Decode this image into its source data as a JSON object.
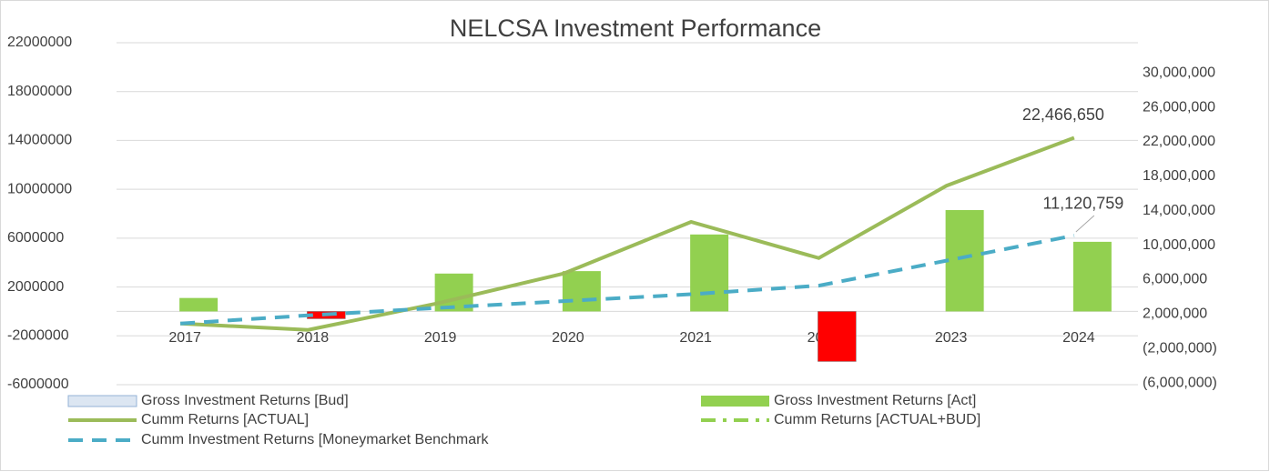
{
  "chart_data": {
    "type": "bar_line",
    "title": "NELCSA Investment Performance",
    "categories": [
      "2017",
      "2018",
      "2019",
      "2020",
      "2021",
      "2022",
      "2023",
      "2024"
    ],
    "ylim": [
      -6000000,
      22000000
    ],
    "yticks": [
      -6000000,
      -2000000,
      2000000,
      6000000,
      10000000,
      14000000,
      18000000,
      22000000
    ],
    "y2lim": [
      -6200000,
      33500000
    ],
    "y2ticks": [
      {
        "value": -6000000,
        "label": "(6,000,000)"
      },
      {
        "value": -2000000,
        "label": "(2,000,000)"
      },
      {
        "value": 2000000,
        "label": "2,000,000"
      },
      {
        "value": 6000000,
        "label": "6,000,000"
      },
      {
        "value": 10000000,
        "label": "10,000,000"
      },
      {
        "value": 14000000,
        "label": "14,000,000"
      },
      {
        "value": 18000000,
        "label": "18,000,000"
      },
      {
        "value": 22000000,
        "label": "22,000,000"
      },
      {
        "value": 26000000,
        "label": "26,000,000"
      },
      {
        "value": 30000000,
        "label": "30,000,000"
      }
    ],
    "grid": true,
    "legend": "bottom",
    "series": [
      {
        "name": "Gross Investment Returns [Bud]",
        "kind": "bar",
        "color": "#dce6f2",
        "values": [
          null,
          null,
          null,
          null,
          null,
          null,
          null,
          null
        ]
      },
      {
        "name": "Gross Investment Returns [Act]",
        "kind": "bar",
        "color": "#92d050",
        "negative_color": "#ff0000",
        "values": [
          1100000,
          -600000,
          3100000,
          3300000,
          6300000,
          -4100000,
          8300000,
          5700000
        ]
      },
      {
        "name": "Cumm Returns [ACTUAL]",
        "kind": "line",
        "axis": "y2",
        "color": "#9bbb59",
        "values": [
          900000,
          160000,
          3200000,
          6700000,
          12700000,
          8500000,
          16900000,
          22466650
        ],
        "value_labels": [
          null,
          null,
          null,
          null,
          null,
          null,
          null,
          "22,466,650"
        ]
      },
      {
        "name": "Cumm Returns [ACTUAL+BUD]",
        "kind": "line",
        "axis": "y2",
        "color": "#92d050",
        "dash": "dashdot",
        "values": [
          null,
          null,
          null,
          null,
          null,
          null,
          null,
          null
        ]
      },
      {
        "name": "Cumm Investment Returns [Moneymarket Benchmark",
        "kind": "line",
        "axis": "y2",
        "color": "#4bacc6",
        "dash": "dash",
        "values": [
          900000,
          1850000,
          2700000,
          3500000,
          4300000,
          5300000,
          8200000,
          11120759
        ],
        "value_labels": [
          null,
          null,
          null,
          null,
          null,
          null,
          null,
          "11,120,759"
        ]
      }
    ]
  }
}
